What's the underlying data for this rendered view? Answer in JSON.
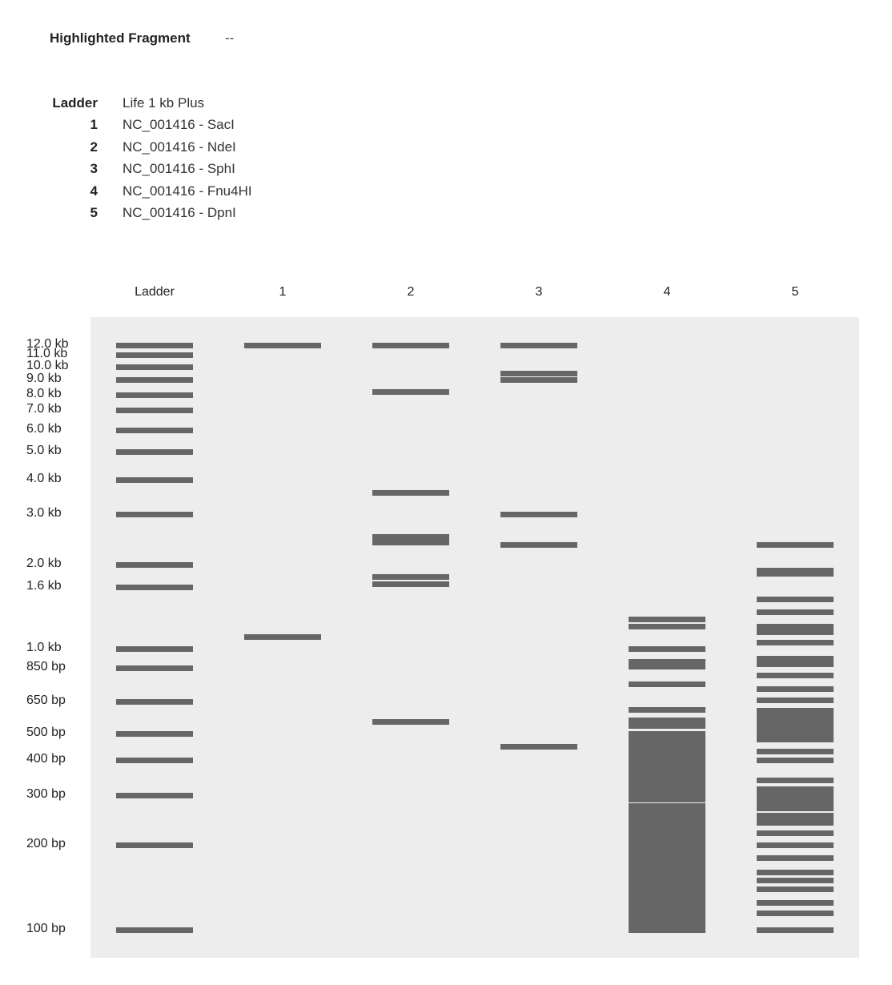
{
  "header": {
    "highlighted_label": "Highlighted Fragment",
    "highlighted_value": "--"
  },
  "legend": [
    {
      "key": "Ladder",
      "value": "Life 1 kb Plus"
    },
    {
      "key": "1",
      "value": "NC_001416 - SacI"
    },
    {
      "key": "2",
      "value": "NC_001416 - NdeI"
    },
    {
      "key": "3",
      "value": "NC_001416 - SphI"
    },
    {
      "key": "4",
      "value": "NC_001416 - Fnu4HI"
    },
    {
      "key": "5",
      "value": "NC_001416 - DpnI"
    }
  ],
  "lanes": [
    {
      "title": "Ladder"
    },
    {
      "title": "1"
    },
    {
      "title": "2"
    },
    {
      "title": "3"
    },
    {
      "title": "4"
    },
    {
      "title": "5"
    }
  ],
  "ladder_labels": [
    "12.0 kb",
    "11.0 kb",
    "10.0 kb",
    "9.0 kb",
    "8.0 kb",
    "7.0 kb",
    "6.0 kb",
    "5.0 kb",
    "4.0 kb",
    "3.0 kb",
    "2.0 kb",
    "1.6 kb",
    "1.0 kb",
    "850 bp",
    "650 bp",
    "500 bp",
    "400 bp",
    "300 bp",
    "200 bp",
    "100 bp"
  ],
  "chart_data": {
    "type": "gel",
    "ladder_bp": [
      12000,
      11000,
      10000,
      9000,
      8000,
      7000,
      6000,
      5000,
      4000,
      3000,
      2000,
      1650,
      1000,
      850,
      650,
      500,
      400,
      300,
      200,
      100
    ],
    "lane_bands_bp": [
      [
        12000,
        12000,
        11000,
        10000,
        9000,
        8000,
        7000,
        6000,
        5000,
        4000,
        3000,
        2000,
        1650,
        1000,
        850,
        650,
        500,
        400,
        300,
        200,
        100
      ],
      [
        12000,
        1100
      ],
      [
        12000,
        8200,
        3600,
        2500,
        2400,
        1800,
        1700,
        550
      ],
      [
        12000,
        9500,
        9000,
        3000,
        2350,
        450
      ],
      [
        1270,
        1200,
        1000,
        900,
        860,
        750,
        610,
        560,
        535,
        470,
        430,
        380,
        355,
        320,
        290,
        260,
        220,
        180,
        150,
        120,
        100
      ],
      [
        2350,
        1900,
        1850,
        1500,
        1350,
        1200,
        1150,
        1050,
        920,
        880,
        800,
        720,
        660,
        590,
        540,
        480,
        430,
        400,
        340,
        300,
        270,
        250,
        220,
        200,
        180,
        160,
        150,
        140,
        125,
        115,
        100
      ]
    ]
  }
}
